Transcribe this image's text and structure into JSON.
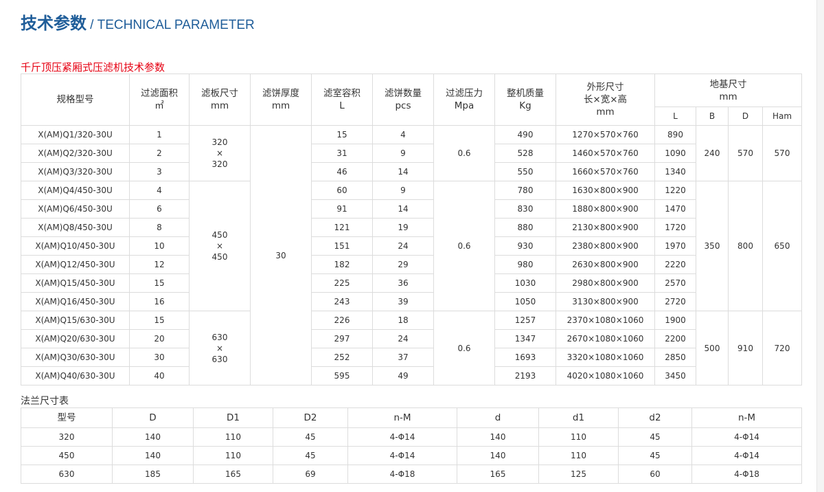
{
  "header": {
    "title_cn": "技术参数",
    "title_en": "/ TECHNICAL PARAMETER"
  },
  "main_table": {
    "caption": "千斤顶压紧厢式压滤机技术参数",
    "headers": {
      "model": "规格型号",
      "area": [
        "过滤面积",
        "㎡"
      ],
      "plate": [
        "滤板尺寸",
        "mm"
      ],
      "cake_thickness": [
        "滤饼厚度",
        "mm"
      ],
      "volume": [
        "滤室容积",
        "L"
      ],
      "cake_count": [
        "滤饼数量",
        "pcs"
      ],
      "pressure": [
        "过滤压力",
        "Mpa"
      ],
      "weight": [
        "整机质量",
        "Kg"
      ],
      "dimensions": [
        "外形尺寸",
        "长×宽×高",
        "mm"
      ],
      "foundation": [
        "地基尺寸",
        "mm"
      ],
      "foundation_sub": [
        "L",
        "B",
        "D",
        "Ham"
      ]
    },
    "cake_thickness_value": "30",
    "groups": [
      {
        "plate": [
          "320",
          "×",
          "320"
        ],
        "pressure": "0.6",
        "B": "240",
        "D": "570",
        "Ham": "570",
        "rows": [
          {
            "model": "X(AM)Q1/320-30U",
            "area": "1",
            "volume": "15",
            "cakes": "4",
            "weight": "490",
            "dims": "1270×570×760",
            "L": "890"
          },
          {
            "model": "X(AM)Q2/320-30U",
            "area": "2",
            "volume": "31",
            "cakes": "9",
            "weight": "528",
            "dims": "1460×570×760",
            "L": "1090"
          },
          {
            "model": "X(AM)Q3/320-30U",
            "area": "3",
            "volume": "46",
            "cakes": "14",
            "weight": "550",
            "dims": "1660×570×760",
            "L": "1340"
          }
        ]
      },
      {
        "plate": [
          "450",
          "×",
          "450"
        ],
        "pressure": "0.6",
        "B": "350",
        "D": "800",
        "Ham": "650",
        "rows": [
          {
            "model": "X(AM)Q4/450-30U",
            "area": "4",
            "volume": "60",
            "cakes": "9",
            "weight": "780",
            "dims": "1630×800×900",
            "L": "1220"
          },
          {
            "model": "X(AM)Q6/450-30U",
            "area": "6",
            "volume": "91",
            "cakes": "14",
            "weight": "830",
            "dims": "1880×800×900",
            "L": "1470"
          },
          {
            "model": "X(AM)Q8/450-30U",
            "area": "8",
            "volume": "121",
            "cakes": "19",
            "weight": "880",
            "dims": "2130×800×900",
            "L": "1720"
          },
          {
            "model": "X(AM)Q10/450-30U",
            "area": "10",
            "volume": "151",
            "cakes": "24",
            "weight": "930",
            "dims": "2380×800×900",
            "L": "1970"
          },
          {
            "model": "X(AM)Q12/450-30U",
            "area": "12",
            "volume": "182",
            "cakes": "29",
            "weight": "980",
            "dims": "2630×800×900",
            "L": "2220"
          },
          {
            "model": "X(AM)Q15/450-30U",
            "area": "15",
            "volume": "225",
            "cakes": "36",
            "weight": "1030",
            "dims": "2980×800×900",
            "L": "2570"
          },
          {
            "model": "X(AM)Q16/450-30U",
            "area": "16",
            "volume": "243",
            "cakes": "39",
            "weight": "1050",
            "dims": "3130×800×900",
            "L": "2720"
          }
        ]
      },
      {
        "plate": [
          "630",
          "×",
          "630"
        ],
        "pressure": "0.6",
        "B": "500",
        "D": "910",
        "Ham": "720",
        "rows": [
          {
            "model": "X(AM)Q15/630-30U",
            "area": "15",
            "volume": "226",
            "cakes": "18",
            "weight": "1257",
            "dims": "2370×1080×1060",
            "L": "1900"
          },
          {
            "model": "X(AM)Q20/630-30U",
            "area": "20",
            "volume": "297",
            "cakes": "24",
            "weight": "1347",
            "dims": "2670×1080×1060",
            "L": "2200"
          },
          {
            "model": "X(AM)Q30/630-30U",
            "area": "30",
            "volume": "252",
            "cakes": "37",
            "weight": "1693",
            "dims": "3320×1080×1060",
            "L": "2850"
          },
          {
            "model": "X(AM)Q40/630-30U",
            "area": "40",
            "volume": "595",
            "cakes": "49",
            "weight": "2193",
            "dims": "4020×1080×1060",
            "L": "3450"
          }
        ]
      }
    ]
  },
  "flange_table": {
    "caption": "法兰尺寸表",
    "headers": [
      "型号",
      "D",
      "D1",
      "D2",
      "n-M",
      "d",
      "d1",
      "d2",
      "n-M"
    ],
    "rows": [
      [
        "320",
        "140",
        "110",
        "45",
        "4-Φ14",
        "140",
        "110",
        "45",
        "4-Φ14"
      ],
      [
        "450",
        "140",
        "110",
        "45",
        "4-Φ14",
        "140",
        "110",
        "45",
        "4-Φ14"
      ],
      [
        "630",
        "185",
        "165",
        "69",
        "4-Φ18",
        "165",
        "125",
        "60",
        "4-Φ18"
      ]
    ]
  },
  "colors": {
    "title": "#1f5d99",
    "caption": "#e60012",
    "border": "#dcdcdc"
  }
}
